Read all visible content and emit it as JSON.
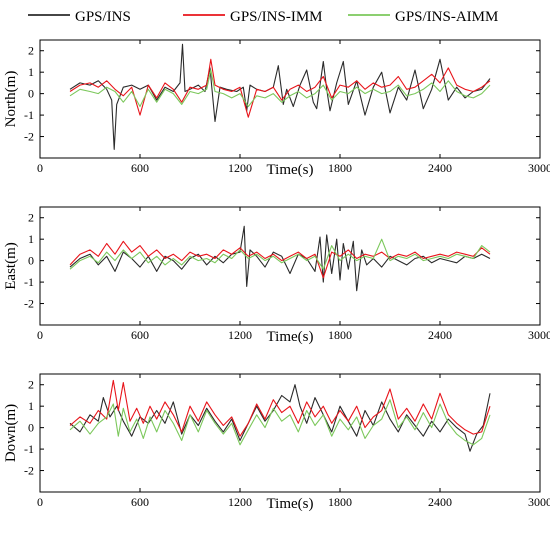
{
  "legend": [
    {
      "label": "GPS/INS",
      "color": "#2b2b2b"
    },
    {
      "label": "GPS/INS-IMM",
      "color": "#e8151b"
    },
    {
      "label": "GPS/INS-AIMM",
      "color": "#7cc85c"
    }
  ],
  "chart_data": [
    {
      "type": "line",
      "xlabel": "Time(s)",
      "ylabel": "North(m)",
      "xlim": [
        0,
        3000
      ],
      "ylim": [
        -3,
        2.5
      ],
      "xticks": [
        0,
        600,
        1200,
        1800,
        2400,
        3000
      ],
      "yticks": [
        -2,
        -1,
        0,
        1,
        2
      ],
      "series": [
        {
          "name": "GPS/INS",
          "color": "#2b2b2b",
          "x": [
            180,
            240,
            300,
            350,
            400,
            430,
            445,
            460,
            500,
            550,
            600,
            650,
            700,
            750,
            800,
            840,
            855,
            870,
            900,
            950,
            990,
            1020,
            1050,
            1080,
            1120,
            1180,
            1220,
            1240,
            1260,
            1300,
            1350,
            1400,
            1430,
            1460,
            1480,
            1520,
            1560,
            1600,
            1640,
            1660,
            1700,
            1720,
            1740,
            1780,
            1820,
            1850,
            1900,
            1950,
            2000,
            2050,
            2100,
            2150,
            2200,
            2250,
            2300,
            2350,
            2400,
            2450,
            2500,
            2550,
            2600,
            2650,
            2700
          ],
          "y": [
            0.2,
            0.5,
            0.4,
            0.6,
            0.2,
            -0.3,
            -2.6,
            -0.5,
            0.3,
            0.4,
            0.2,
            0.4,
            -0.3,
            0.3,
            0.1,
            0.5,
            2.3,
            0.1,
            0.2,
            0.4,
            0.1,
            1.2,
            -1.3,
            0.3,
            0.2,
            0.1,
            0.3,
            -0.8,
            0.4,
            0.2,
            0.1,
            0.3,
            1.3,
            -0.5,
            0.2,
            -0.6,
            0.4,
            1.1,
            -0.4,
            -0.7,
            1.5,
            0.2,
            -0.8,
            0.5,
            1.5,
            -0.5,
            0.6,
            -1.0,
            0.3,
            1.0,
            -0.9,
            0.3,
            -0.3,
            1.1,
            -0.7,
            0.2,
            1.6,
            -0.3,
            0.3,
            -0.2,
            0.1,
            0.2,
            0.7
          ]
        },
        {
          "name": "GPS/INS-IMM",
          "color": "#e8151b",
          "x": [
            180,
            240,
            300,
            350,
            400,
            450,
            500,
            550,
            600,
            650,
            700,
            750,
            800,
            850,
            900,
            950,
            1000,
            1025,
            1050,
            1100,
            1150,
            1200,
            1250,
            1300,
            1350,
            1400,
            1450,
            1500,
            1550,
            1600,
            1650,
            1700,
            1750,
            1800,
            1850,
            1900,
            1950,
            2000,
            2050,
            2100,
            2150,
            2200,
            2250,
            2300,
            2350,
            2400,
            2450,
            2500,
            2550,
            2600,
            2650,
            2700
          ],
          "y": [
            0.1,
            0.4,
            0.5,
            0.3,
            0.6,
            0.2,
            -0.1,
            0.3,
            -1.0,
            0.4,
            -0.2,
            0.5,
            0.2,
            -0.4,
            0.3,
            0.2,
            0.4,
            1.6,
            0.4,
            0.2,
            0.1,
            0.3,
            -1.1,
            0.2,
            0.1,
            0.3,
            -0.3,
            0.2,
            0.4,
            0.1,
            0.3,
            0.8,
            -0.2,
            0.4,
            0.3,
            0.6,
            0.2,
            0.5,
            0.3,
            0.4,
            0.8,
            0.2,
            0.3,
            0.6,
            0.9,
            0.5,
            1.2,
            0.4,
            0.2,
            0.1,
            0.3,
            0.6
          ]
        },
        {
          "name": "GPS/INS-AIMM",
          "color": "#7cc85c",
          "x": [
            180,
            240,
            300,
            350,
            400,
            450,
            500,
            550,
            600,
            650,
            700,
            750,
            800,
            850,
            900,
            950,
            1000,
            1025,
            1050,
            1100,
            1150,
            1200,
            1250,
            1300,
            1350,
            1400,
            1450,
            1500,
            1550,
            1600,
            1650,
            1700,
            1750,
            1800,
            1850,
            1900,
            1950,
            2000,
            2050,
            2100,
            2150,
            2200,
            2250,
            2300,
            2350,
            2400,
            2450,
            2500,
            2550,
            2600,
            2650,
            2700
          ],
          "y": [
            -0.1,
            0.2,
            0.1,
            0.0,
            0.3,
            0.1,
            -0.4,
            0.1,
            -0.6,
            0.2,
            -0.4,
            0.2,
            0.0,
            -0.5,
            0.1,
            0.0,
            0.2,
            1.1,
            0.1,
            0.0,
            -0.2,
            0.0,
            -0.6,
            -0.1,
            -0.2,
            0.0,
            -0.4,
            -0.1,
            0.1,
            -0.2,
            0.0,
            0.4,
            -0.3,
            0.1,
            0.0,
            0.3,
            0.0,
            0.2,
            0.0,
            0.1,
            0.4,
            -0.1,
            0.0,
            0.2,
            0.5,
            0.1,
            0.6,
            0.1,
            -0.1,
            -0.2,
            0.0,
            0.4
          ]
        }
      ]
    },
    {
      "type": "line",
      "xlabel": "Time(s)",
      "ylabel": "East(m)",
      "xlim": [
        0,
        3000
      ],
      "ylim": [
        -3,
        2.5
      ],
      "xticks": [
        0,
        600,
        1200,
        1800,
        2400,
        3000
      ],
      "yticks": [
        -2,
        -1,
        0,
        1,
        2
      ],
      "series": [
        {
          "name": "GPS/INS",
          "color": "#2b2b2b",
          "x": [
            180,
            240,
            300,
            350,
            400,
            450,
            500,
            550,
            600,
            650,
            700,
            750,
            800,
            850,
            900,
            950,
            1000,
            1050,
            1100,
            1150,
            1200,
            1225,
            1240,
            1260,
            1300,
            1350,
            1400,
            1450,
            1500,
            1550,
            1600,
            1650,
            1680,
            1700,
            1720,
            1750,
            1780,
            1800,
            1820,
            1850,
            1880,
            1900,
            1930,
            1960,
            2000,
            2050,
            2100,
            2150,
            2200,
            2250,
            2300,
            2350,
            2400,
            2450,
            2500,
            2550,
            2600,
            2650,
            2700
          ],
          "y": [
            -0.3,
            0.1,
            0.3,
            -0.2,
            0.2,
            -0.5,
            0.4,
            0.1,
            -0.3,
            0.2,
            -0.5,
            0.2,
            0.0,
            -0.4,
            0.1,
            0.3,
            -0.2,
            0.2,
            -0.1,
            0.3,
            0.4,
            1.6,
            -1.2,
            0.5,
            0.2,
            -0.3,
            0.4,
            0.2,
            -0.6,
            0.3,
            0.1,
            -0.5,
            1.1,
            -1.0,
            1.2,
            -0.6,
            1.0,
            -0.9,
            0.8,
            -0.4,
            0.9,
            -1.4,
            0.5,
            -0.2,
            0.1,
            -0.3,
            0.2,
            0.0,
            -0.2,
            0.1,
            0.2,
            -0.1,
            0.1,
            0.0,
            -0.1,
            0.2,
            0.1,
            0.3,
            0.1
          ]
        },
        {
          "name": "GPS/INS-IMM",
          "color": "#e8151b",
          "x": [
            180,
            240,
            300,
            350,
            400,
            450,
            500,
            550,
            600,
            650,
            700,
            750,
            800,
            850,
            900,
            950,
            1000,
            1050,
            1100,
            1150,
            1200,
            1250,
            1300,
            1350,
            1400,
            1450,
            1500,
            1550,
            1600,
            1650,
            1700,
            1750,
            1800,
            1850,
            1900,
            1950,
            2000,
            2050,
            2100,
            2150,
            2200,
            2250,
            2300,
            2350,
            2400,
            2450,
            2500,
            2550,
            2600,
            2650,
            2700
          ],
          "y": [
            -0.2,
            0.3,
            0.5,
            0.2,
            0.8,
            0.3,
            0.9,
            0.4,
            0.7,
            0.2,
            0.5,
            0.1,
            0.3,
            0.0,
            0.4,
            0.2,
            0.3,
            0.1,
            0.5,
            0.3,
            0.6,
            0.2,
            0.4,
            0.1,
            0.3,
            0.0,
            0.2,
            0.4,
            0.1,
            0.3,
            -0.8,
            0.4,
            0.2,
            0.5,
            0.1,
            0.3,
            0.2,
            0.4,
            0.1,
            0.3,
            0.2,
            0.4,
            0.1,
            0.2,
            0.3,
            0.2,
            0.4,
            0.3,
            0.2,
            0.6,
            0.3
          ]
        },
        {
          "name": "GPS/INS-AIMM",
          "color": "#7cc85c",
          "x": [
            180,
            240,
            300,
            350,
            400,
            450,
            500,
            550,
            600,
            650,
            700,
            750,
            800,
            850,
            900,
            950,
            1000,
            1050,
            1100,
            1150,
            1200,
            1250,
            1300,
            1350,
            1400,
            1450,
            1500,
            1550,
            1600,
            1650,
            1700,
            1750,
            1800,
            1850,
            1900,
            1950,
            2000,
            2050,
            2100,
            2150,
            2200,
            2250,
            2300,
            2350,
            2400,
            2450,
            2500,
            2550,
            2600,
            2650,
            2700
          ],
          "y": [
            -0.4,
            0.0,
            0.2,
            -0.1,
            0.4,
            0.0,
            0.5,
            0.1,
            0.4,
            -0.1,
            0.2,
            -0.2,
            0.1,
            -0.2,
            0.2,
            0.0,
            0.1,
            -0.1,
            0.3,
            0.1,
            0.5,
            0.1,
            0.3,
            0.0,
            0.2,
            -0.1,
            0.1,
            0.3,
            0.0,
            0.2,
            -0.4,
            0.7,
            0.0,
            0.3,
            0.0,
            0.2,
            0.1,
            1.0,
            0.0,
            0.2,
            0.1,
            0.3,
            0.0,
            0.1,
            0.2,
            0.1,
            0.3,
            0.2,
            0.1,
            0.7,
            0.4
          ]
        }
      ]
    },
    {
      "type": "line",
      "xlabel": "Time(s)",
      "ylabel": "Down(m)",
      "xlim": [
        0,
        3000
      ],
      "ylim": [
        -3,
        2.5
      ],
      "xticks": [
        0,
        600,
        1200,
        1800,
        2400,
        3000
      ],
      "yticks": [
        -2,
        -1,
        0,
        1,
        2
      ],
      "series": [
        {
          "name": "GPS/INS",
          "color": "#2b2b2b",
          "x": [
            180,
            240,
            300,
            350,
            380,
            420,
            460,
            500,
            550,
            600,
            650,
            700,
            750,
            800,
            850,
            900,
            950,
            1000,
            1050,
            1100,
            1150,
            1200,
            1250,
            1300,
            1350,
            1400,
            1450,
            1500,
            1530,
            1560,
            1600,
            1650,
            1700,
            1750,
            1800,
            1850,
            1900,
            1950,
            2000,
            2050,
            2100,
            2150,
            2200,
            2250,
            2300,
            2350,
            2400,
            2450,
            2500,
            2550,
            2580,
            2620,
            2660,
            2700
          ],
          "y": [
            0.2,
            -0.2,
            0.6,
            0.3,
            1.4,
            0.5,
            1.0,
            0.3,
            -0.4,
            0.5,
            0.2,
            0.8,
            0.2,
            1.2,
            -0.3,
            0.6,
            0.1,
            0.9,
            0.3,
            -0.2,
            0.4,
            -0.6,
            0.2,
            1.0,
            0.3,
            0.8,
            1.5,
            1.2,
            2.0,
            1.0,
            0.2,
            1.4,
            0.6,
            -0.2,
            1.0,
            0.3,
            -0.4,
            0.8,
            0.1,
            1.2,
            0.4,
            -0.2,
            0.6,
            0.1,
            -0.4,
            0.3,
            -0.2,
            0.4,
            0.0,
            -0.3,
            -1.1,
            -0.3,
            0.1,
            1.6
          ]
        },
        {
          "name": "GPS/INS-IMM",
          "color": "#e8151b",
          "x": [
            180,
            240,
            300,
            350,
            400,
            440,
            470,
            500,
            540,
            580,
            620,
            660,
            700,
            750,
            800,
            850,
            900,
            950,
            1000,
            1050,
            1100,
            1150,
            1200,
            1250,
            1300,
            1350,
            1400,
            1450,
            1500,
            1550,
            1600,
            1650,
            1700,
            1750,
            1800,
            1850,
            1900,
            1950,
            2000,
            2050,
            2100,
            2150,
            2200,
            2250,
            2300,
            2350,
            2400,
            2450,
            2500,
            2550,
            2600,
            2650,
            2700
          ],
          "y": [
            0.1,
            0.5,
            0.2,
            0.8,
            0.4,
            2.2,
            0.8,
            2.1,
            0.3,
            0.9,
            0.2,
            1.0,
            0.4,
            1.2,
            0.6,
            -0.2,
            1.0,
            0.3,
            1.2,
            0.6,
            0.1,
            0.5,
            -0.4,
            0.2,
            1.1,
            0.4,
            1.3,
            0.7,
            1.0,
            0.2,
            1.2,
            0.5,
            1.0,
            0.2,
            0.8,
            0.3,
            1.0,
            0.0,
            0.5,
            0.8,
            1.8,
            0.4,
            0.9,
            0.3,
            1.1,
            0.4,
            1.6,
            0.6,
            0.2,
            -0.1,
            -0.3,
            -0.2,
            1.0
          ]
        },
        {
          "name": "GPS/INS-AIMM",
          "color": "#7cc85c",
          "x": [
            180,
            240,
            300,
            350,
            400,
            440,
            470,
            500,
            540,
            580,
            620,
            660,
            700,
            750,
            800,
            850,
            900,
            950,
            1000,
            1050,
            1100,
            1150,
            1200,
            1250,
            1300,
            1350,
            1400,
            1450,
            1500,
            1550,
            1600,
            1650,
            1700,
            1750,
            1800,
            1850,
            1900,
            1950,
            2000,
            2050,
            2100,
            2150,
            2200,
            2250,
            2300,
            2350,
            2400,
            2450,
            2500,
            2550,
            2600,
            2650,
            2700
          ],
          "y": [
            -0.1,
            0.3,
            -0.3,
            0.2,
            0.5,
            1.1,
            -0.4,
            0.9,
            -0.2,
            0.4,
            -0.5,
            0.5,
            -0.2,
            0.8,
            0.2,
            -0.6,
            0.6,
            -0.2,
            0.8,
            0.2,
            -0.3,
            0.2,
            -0.8,
            -0.1,
            0.6,
            0.0,
            0.9,
            0.3,
            0.6,
            -0.2,
            0.8,
            0.1,
            0.6,
            -0.4,
            0.4,
            -0.1,
            0.5,
            -0.5,
            0.1,
            0.4,
            1.3,
            0.0,
            0.5,
            -0.1,
            0.7,
            0.0,
            1.1,
            0.2,
            -0.3,
            -0.6,
            -0.8,
            -0.5,
            0.6
          ]
        }
      ]
    }
  ]
}
